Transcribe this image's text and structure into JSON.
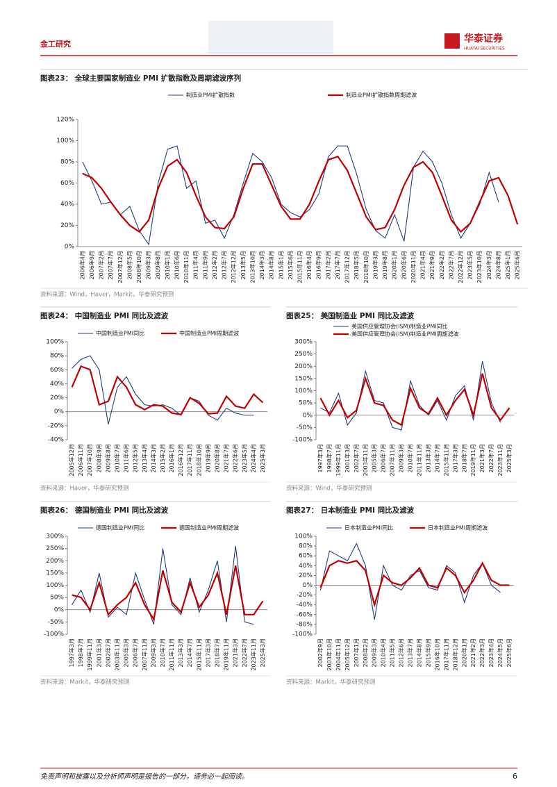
{
  "header": {
    "section": "金工研究",
    "brand": "华泰证券",
    "brand_en": "HUATAI SECURITIES"
  },
  "chart_data": [
    {
      "type": "line",
      "title": "图表23： 全球主要国家制造业 PMI 扩散指数及周期滤波序列",
      "source": "资料来源：Wind，Haver，Markit，华泰研究预测",
      "legend": "top",
      "categories": [
        "2006年4月",
        "2006年9月",
        "2007年2月",
        "2007年7月",
        "2007年12月",
        "2008年5月",
        "2008年10月",
        "2009年3月",
        "2009年8月",
        "2010年1月",
        "2010年6月",
        "2010年11月",
        "2011年4月",
        "2011年9月",
        "2012年2月",
        "2012年7月",
        "2012年12月",
        "2013年5月",
        "2013年10月",
        "2014年3月",
        "2014年8月",
        "2015年1月",
        "2015年6月",
        "2015年11月",
        "2016年4月",
        "2016年9月",
        "2017年2月",
        "2017年7月",
        "2017年12月",
        "2018年5月",
        "2018年10月",
        "2019年3月",
        "2019年8月",
        "2020年1月",
        "2020年6月",
        "2020年11月",
        "2021年4月",
        "2021年9月",
        "2022年2月",
        "2022年7月",
        "2022年12月",
        "2023年5月",
        "2023年10月",
        "2024年3月",
        "2024年8月",
        "2025年1月",
        "2025年6月"
      ],
      "series": [
        {
          "name": "制造业PMI扩散指数",
          "color": "#1f3d7a",
          "values": [
            80,
            62,
            40,
            42,
            30,
            38,
            15,
            2,
            60,
            92,
            95,
            55,
            62,
            22,
            25,
            8,
            30,
            60,
            88,
            80,
            65,
            40,
            32,
            28,
            35,
            50,
            85,
            95,
            95,
            68,
            35,
            15,
            8,
            30,
            5,
            75,
            90,
            80,
            60,
            30,
            8,
            22,
            40,
            70,
            42,
            null,
            null
          ]
        },
        {
          "name": "制造业PMI扩散指数周期滤波",
          "color": "#c00000",
          "values": [
            69,
            65,
            55,
            42,
            30,
            20,
            14,
            25,
            55,
            76,
            82,
            70,
            48,
            28,
            18,
            17,
            28,
            55,
            78,
            78,
            58,
            38,
            26,
            26,
            40,
            62,
            82,
            85,
            72,
            50,
            28,
            16,
            18,
            35,
            58,
            75,
            80,
            70,
            48,
            25,
            14,
            22,
            42,
            62,
            65,
            48,
            21
          ]
        }
      ],
      "ylim": [
        0,
        120
      ],
      "yticks": [
        {
          "value": 0,
          "label": "0%"
        },
        {
          "value": 20,
          "label": "20%"
        },
        {
          "value": 40,
          "label": "40%"
        },
        {
          "value": 60,
          "label": "60%"
        },
        {
          "value": 80,
          "label": "80%"
        },
        {
          "value": 100,
          "label": "100%"
        },
        {
          "value": 120,
          "label": "120%"
        }
      ]
    },
    {
      "type": "line",
      "title": "图表24： 中国制造业 PMI 同比及滤波",
      "source": "资料来源：Haver，华泰研究预测",
      "legend": "top",
      "categories": [
        "2005年12月",
        "2006年11月",
        "2007年10月",
        "2008年9月",
        "2009年8月",
        "2010年7月",
        "2011年6月",
        "2012年5月",
        "2013年4月",
        "2014年3月",
        "2015年2月",
        "2016年1月",
        "2016年12月",
        "2017年11月",
        "2018年10月",
        "2019年9月",
        "2020年8月",
        "2021年7月",
        "2022年6月",
        "2023年5月",
        "2024年4月",
        "2025年3月"
      ],
      "series": [
        {
          "name": "中国制造业PMI同比",
          "color": "#1f3d7a",
          "values": [
            62,
            75,
            80,
            60,
            -18,
            35,
            50,
            25,
            10,
            8,
            10,
            5,
            -5,
            20,
            15,
            -5,
            -12,
            5,
            -2,
            -5,
            -5,
            null
          ]
        },
        {
          "name": "中国制造业PMI周期滤波",
          "color": "#c00000",
          "values": [
            35,
            65,
            60,
            10,
            15,
            50,
            35,
            10,
            3,
            10,
            8,
            -2,
            -4,
            20,
            12,
            -3,
            -2,
            22,
            8,
            5,
            25,
            13
          ]
        }
      ],
      "ylim": [
        -40,
        100
      ],
      "yticks": [
        {
          "value": -40,
          "label": "-40%"
        },
        {
          "value": -20,
          "label": "-20%"
        },
        {
          "value": 0,
          "label": "0%"
        },
        {
          "value": 20,
          "label": "20%"
        },
        {
          "value": 40,
          "label": "40%"
        },
        {
          "value": 60,
          "label": "60%"
        },
        {
          "value": 80,
          "label": "80%"
        },
        {
          "value": 100,
          "label": "100%"
        }
      ]
    },
    {
      "type": "line",
      "title": "图表25： 美国制造业 PMI 同比及滤波",
      "source": "资料来源：Wind，华泰研究预测",
      "legend": "top-left",
      "categories": [
        "1997年3月",
        "1998年7月",
        "1999年11月",
        "2001年3月",
        "2002年7月",
        "2003年11月",
        "2005年3月",
        "2006年7月",
        "2007年11月",
        "2009年3月",
        "2010年7月",
        "2011年11月",
        "2013年3月",
        "2014年7月",
        "2015年11月",
        "2017年3月",
        "2018年7月",
        "2019年11月",
        "2021年3月",
        "2022年7月",
        "2023年11月",
        "2025年3月"
      ],
      "series": [
        {
          "name": "美国供应管理协会(ISM)制造业PMI同比",
          "color": "#1f3d7a",
          "values": [
            30,
            10,
            90,
            -40,
            10,
            180,
            60,
            50,
            -50,
            -60,
            140,
            40,
            0,
            60,
            -20,
            80,
            120,
            -20,
            220,
            50,
            -30,
            null
          ]
        },
        {
          "name": "美国供应管理协会(ISM)制造业PMI周期滤波",
          "color": "#c00000",
          "values": [
            70,
            0,
            60,
            -10,
            20,
            150,
            50,
            40,
            -20,
            -40,
            110,
            30,
            5,
            70,
            0,
            60,
            105,
            0,
            170,
            30,
            -20,
            30
          ]
        }
      ],
      "ylim": [
        -100,
        300
      ],
      "yticks": [
        {
          "value": -100,
          "label": "-100%"
        },
        {
          "value": -50,
          "label": "-50%"
        },
        {
          "value": 0,
          "label": "0%"
        },
        {
          "value": 50,
          "label": "50%"
        },
        {
          "value": 100,
          "label": "100%"
        },
        {
          "value": 150,
          "label": "150%"
        },
        {
          "value": 200,
          "label": "200%"
        },
        {
          "value": 250,
          "label": "250%"
        },
        {
          "value": 300,
          "label": "300%"
        }
      ]
    },
    {
      "type": "line",
      "title": "图表26： 德国制造业 PMI 同比及滤波",
      "source": "资料来源：Markit，华泰研究预测",
      "legend": "top",
      "categories": [
        "1997年3月",
        "1998年7月",
        "1999年11月",
        "2001年3月",
        "2002年7月",
        "2003年11月",
        "2005年3月",
        "2006年7月",
        "2007年11月",
        "2009年3月",
        "2010年7月",
        "2011年11月",
        "2013年3月",
        "2014年7月",
        "2015年11月",
        "2017年3月",
        "2018年7月",
        "2019年11月",
        "2021年3月",
        "2022年7月",
        "2023年11月",
        "2025年3月"
      ],
      "series": [
        {
          "name": "德国制造业PMI同比",
          "color": "#1f3d7a",
          "values": [
            20,
            80,
            -10,
            150,
            -30,
            10,
            -20,
            150,
            40,
            -60,
            250,
            20,
            -20,
            130,
            -10,
            80,
            200,
            -50,
            260,
            -50,
            -60,
            null
          ]
        },
        {
          "name": "德国制造业PMI周期滤波",
          "color": "#c00000",
          "values": [
            60,
            50,
            0,
            110,
            -20,
            20,
            50,
            110,
            20,
            -40,
            160,
            30,
            -10,
            110,
            10,
            60,
            150,
            -20,
            180,
            -20,
            -20,
            35
          ]
        }
      ],
      "ylim": [
        -100,
        300
      ],
      "yticks": [
        {
          "value": -100,
          "label": "-100%"
        },
        {
          "value": -50,
          "label": "-50%"
        },
        {
          "value": 0,
          "label": "0%"
        },
        {
          "value": 50,
          "label": "50%"
        },
        {
          "value": 100,
          "label": "100%"
        },
        {
          "value": 150,
          "label": "150%"
        },
        {
          "value": 200,
          "label": "200%"
        },
        {
          "value": 250,
          "label": "250%"
        },
        {
          "value": 300,
          "label": "300%"
        }
      ]
    },
    {
      "type": "line",
      "title": "图表27： 日本制造业 PMI 同比及滤波",
      "source": "资料来源：Markit，华泰研究预测",
      "legend": "top",
      "categories": [
        "2002年9月",
        "2003年10月",
        "2004年11月",
        "2005年12月",
        "2007年1月",
        "2008年2月",
        "2009年3月",
        "2010年4月",
        "2011年5月",
        "2012年6月",
        "2013年7月",
        "2014年8月",
        "2015年9月",
        "2016年10月",
        "2017年11月",
        "2018年12月",
        "2020年1月",
        "2021年2月",
        "2022年3月",
        "2023年4月",
        "2024年5月",
        "2025年6月"
      ],
      "series": [
        {
          "name": "日本制造业PMI同比",
          "color": "#1f3d7a",
          "values": [
            -10,
            70,
            60,
            50,
            85,
            40,
            -70,
            40,
            0,
            -10,
            20,
            30,
            -5,
            -10,
            40,
            25,
            -35,
            20,
            45,
            0,
            -15,
            null
          ]
        },
        {
          "name": "日本制造业PMI周期滤波",
          "color": "#c00000",
          "values": [
            -5,
            40,
            50,
            45,
            50,
            30,
            -40,
            20,
            5,
            0,
            15,
            35,
            0,
            -5,
            35,
            20,
            -15,
            10,
            45,
            10,
            0,
            0
          ]
        }
      ],
      "ylim": [
        -100,
        100
      ],
      "yticks": [
        {
          "value": -100,
          "label": "-100%"
        },
        {
          "value": -80,
          "label": "-80%"
        },
        {
          "value": -60,
          "label": "-60%"
        },
        {
          "value": -40,
          "label": "-40%"
        },
        {
          "value": -20,
          "label": "-20%"
        },
        {
          "value": 0,
          "label": "0%"
        },
        {
          "value": 20,
          "label": "20%"
        },
        {
          "value": 40,
          "label": "40%"
        },
        {
          "value": 60,
          "label": "60%"
        },
        {
          "value": 80,
          "label": "80%"
        },
        {
          "value": 100,
          "label": "100%"
        }
      ]
    }
  ],
  "footer": {
    "disclaimer": "免责声明和披露以及分析师声明是报告的一部分，请务必一起阅读。",
    "page": 6
  }
}
